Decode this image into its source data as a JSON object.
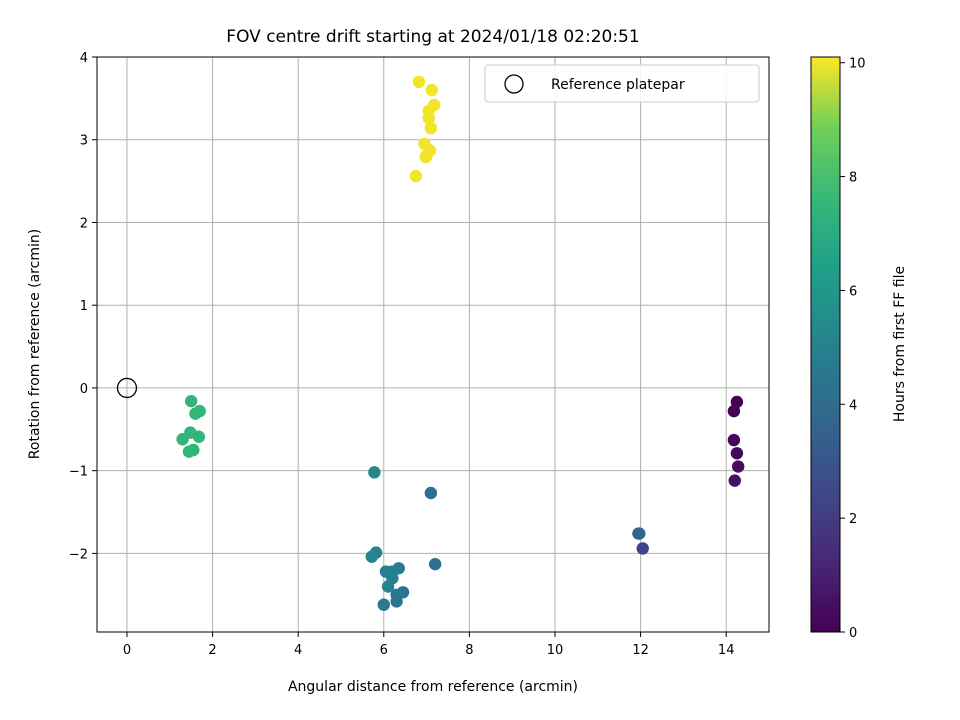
{
  "chart_data": {
    "type": "scatter",
    "title": "FOV centre drift starting at 2024/01/18 02:20:51",
    "xlabel": "Angular distance from reference (arcmin)",
    "ylabel": "Rotation from reference (arcmin)",
    "xlim": [
      -0.7,
      15
    ],
    "ylim": [
      -2.95,
      4
    ],
    "xticks": [
      0,
      2,
      4,
      6,
      8,
      10,
      12,
      14
    ],
    "yticks": [
      -2,
      -1,
      0,
      1,
      2,
      3,
      4
    ],
    "grid": true,
    "legend": {
      "placement": "top-right",
      "entries": [
        "Reference platepar"
      ]
    },
    "reference_point": {
      "name": "Reference platepar",
      "x": 0,
      "y": 0
    },
    "colorbar": {
      "label": "Hours from first FF file",
      "colormap": "viridis",
      "range": [
        0,
        10.1
      ],
      "ticks": [
        0,
        2,
        4,
        6,
        8,
        10
      ]
    },
    "points": [
      {
        "x": 14.25,
        "y": -0.17,
        "t": 0.0
      },
      {
        "x": 14.18,
        "y": -0.28,
        "t": 0.1
      },
      {
        "x": 14.18,
        "y": -0.63,
        "t": 0.2
      },
      {
        "x": 14.25,
        "y": -0.79,
        "t": 0.3
      },
      {
        "x": 14.28,
        "y": -0.95,
        "t": 0.4
      },
      {
        "x": 14.2,
        "y": -1.12,
        "t": 0.5
      },
      {
        "x": 12.05,
        "y": -1.94,
        "t": 2.3
      },
      {
        "x": 11.95,
        "y": -1.76,
        "t": 3.6
      },
      {
        "x": 11.97,
        "y": -1.76,
        "t": 3.7
      },
      {
        "x": 7.2,
        "y": -2.13,
        "t": 4.2
      },
      {
        "x": 7.1,
        "y": -1.27,
        "t": 4.1
      },
      {
        "x": 6.45,
        "y": -2.47,
        "t": 4.3
      },
      {
        "x": 6.3,
        "y": -2.58,
        "t": 4.4
      },
      {
        "x": 6.3,
        "y": -2.5,
        "t": 4.5
      },
      {
        "x": 6.0,
        "y": -2.62,
        "t": 4.6
      },
      {
        "x": 6.35,
        "y": -2.18,
        "t": 4.7
      },
      {
        "x": 6.2,
        "y": -2.22,
        "t": 4.8
      },
      {
        "x": 6.2,
        "y": -2.3,
        "t": 4.9
      },
      {
        "x": 6.05,
        "y": -2.22,
        "t": 5.0
      },
      {
        "x": 6.1,
        "y": -2.4,
        "t": 5.1
      },
      {
        "x": 5.82,
        "y": -1.99,
        "t": 5.0
      },
      {
        "x": 5.72,
        "y": -2.04,
        "t": 5.2
      },
      {
        "x": 5.78,
        "y": -1.02,
        "t": 5.3
      },
      {
        "x": 1.5,
        "y": -0.16,
        "t": 7.4
      },
      {
        "x": 1.7,
        "y": -0.28,
        "t": 7.4
      },
      {
        "x": 1.6,
        "y": -0.31,
        "t": 7.4
      },
      {
        "x": 1.3,
        "y": -0.62,
        "t": 7.4
      },
      {
        "x": 1.48,
        "y": -0.54,
        "t": 7.4
      },
      {
        "x": 1.68,
        "y": -0.59,
        "t": 7.4
      },
      {
        "x": 1.45,
        "y": -0.77,
        "t": 7.4
      },
      {
        "x": 1.55,
        "y": -0.75,
        "t": 7.4
      },
      {
        "x": 6.82,
        "y": 3.7,
        "t": 10.0
      },
      {
        "x": 7.12,
        "y": 3.6,
        "t": 10.0
      },
      {
        "x": 7.18,
        "y": 3.42,
        "t": 10.0
      },
      {
        "x": 7.05,
        "y": 3.35,
        "t": 10.0
      },
      {
        "x": 7.05,
        "y": 3.26,
        "t": 10.0
      },
      {
        "x": 7.1,
        "y": 3.14,
        "t": 10.0
      },
      {
        "x": 6.95,
        "y": 2.95,
        "t": 10.0
      },
      {
        "x": 7.08,
        "y": 2.87,
        "t": 10.0
      },
      {
        "x": 7.0,
        "y": 2.81,
        "t": 10.0
      },
      {
        "x": 6.98,
        "y": 2.79,
        "t": 10.0
      },
      {
        "x": 6.75,
        "y": 2.56,
        "t": 10.0
      }
    ]
  }
}
